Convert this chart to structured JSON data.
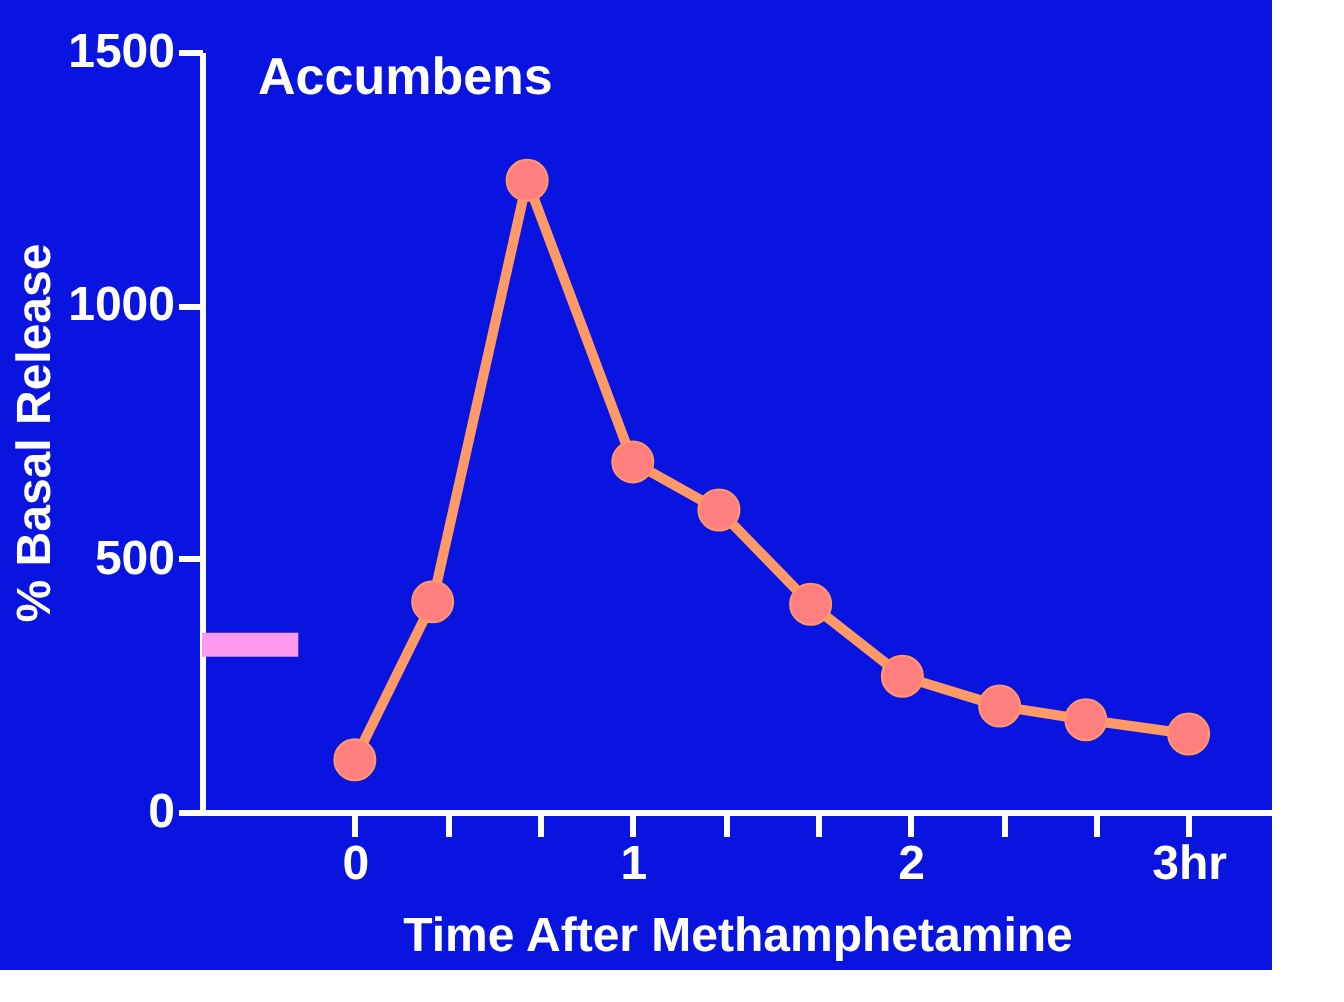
{
  "chart_data": {
    "type": "line",
    "title": "Accumbens",
    "xlabel": "Time After Methamphetamine",
    "ylabel": "% Basal Release",
    "x": [
      0,
      0.28,
      0.62,
      1.0,
      1.31,
      1.64,
      1.97,
      2.32,
      2.63,
      3.0
    ],
    "series": [
      {
        "color": "#ff9966",
        "values": [
          103,
          415,
          1247,
          691,
          596,
          410,
          268,
          209,
          182,
          154
        ]
      }
    ],
    "xlim": [
      -0.55,
      3.3
    ],
    "xticks": [
      0,
      {
        "value": 0.333,
        "label": null
      },
      {
        "value": 0.667,
        "label": null
      },
      1,
      {
        "value": 1.333,
        "label": null
      },
      {
        "value": 1.667,
        "label": null
      },
      2,
      {
        "value": 2.333,
        "label": null
      },
      {
        "value": 2.667,
        "label": null
      },
      {
        "value": 3,
        "label": "3hr"
      }
    ],
    "ylim": [
      0,
      1500
    ],
    "yticks": [
      0,
      500,
      1000,
      1500
    ],
    "ref_lines": [
      {
        "axis": "y",
        "value": 330,
        "color": "#ff99ee"
      }
    ],
    "marker": "circle",
    "line_style": "solid",
    "grid": false
  }
}
